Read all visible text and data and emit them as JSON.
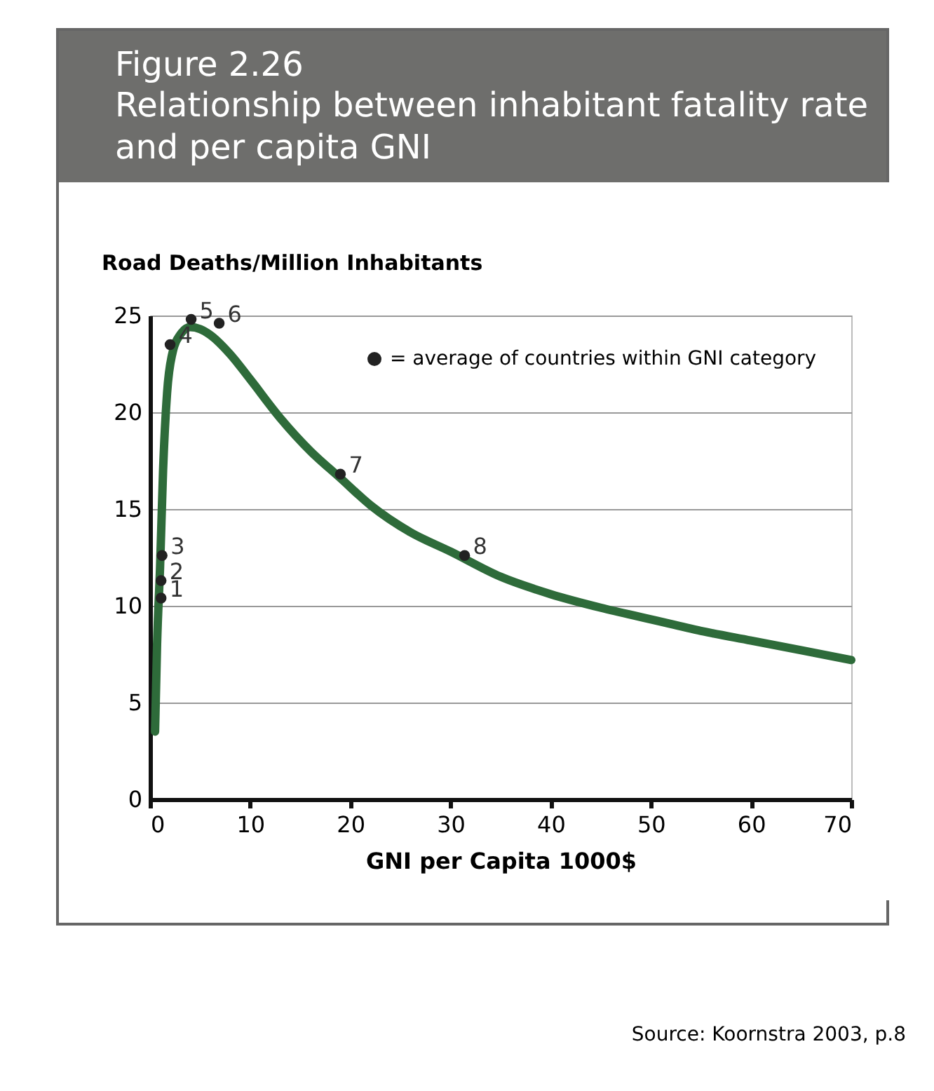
{
  "chart_data": {
    "type": "line",
    "title": "Figure 2.26",
    "subtitle": "Relationship between inhabitant fatality rate and per capita GNI",
    "xlabel": "GNI per Capita 1000$",
    "ylabel": "Road Deaths/Million Inhabitants",
    "xlim": [
      0,
      70
    ],
    "xticks": [
      0,
      10,
      20,
      30,
      40,
      50,
      60,
      70
    ],
    "ylim": [
      0,
      25
    ],
    "yticks": [
      0,
      5,
      10,
      15,
      20,
      25
    ],
    "grid": "y",
    "legend": "top right",
    "series": [
      {
        "color": "#2e6b3a",
        "marker": "none",
        "line_style": "solid",
        "x": [
          0.5,
          0.7,
          1,
          1.3,
          1.7,
          2.3,
          3,
          4,
          5,
          6,
          8,
          10,
          13,
          16,
          19,
          22,
          26,
          30,
          35,
          40,
          45,
          50,
          55,
          60,
          65,
          70
        ],
        "values": [
          3.5,
          8,
          12,
          17,
          21,
          23.2,
          24,
          24.4,
          24.3,
          24,
          23,
          21.7,
          19.7,
          18,
          16.6,
          15.2,
          13.8,
          12.8,
          11.5,
          10.6,
          9.9,
          9.3,
          8.7,
          8.2,
          7.7,
          7.2
        ]
      },
      {
        "type": "scatter",
        "name": "= average of countries within GNI category",
        "color": "#222222",
        "marker": "circle",
        "x": [
          1.1,
          1.1,
          1.2,
          2.0,
          4.1,
          6.9,
          19.0,
          31.4
        ],
        "values": [
          10.4,
          11.3,
          12.6,
          23.5,
          24.8,
          24.6,
          16.8,
          12.6
        ]
      }
    ],
    "annotations": [
      {
        "text": "1",
        "x": 1.1,
        "y": 10.4
      },
      {
        "text": "2",
        "x": 1.1,
        "y": 11.3
      },
      {
        "text": "3",
        "x": 1.2,
        "y": 12.6
      },
      {
        "text": "4",
        "x": 2.0,
        "y": 23.5
      },
      {
        "text": "5",
        "x": 4.1,
        "y": 24.8
      },
      {
        "text": "6",
        "x": 6.9,
        "y": 24.6
      },
      {
        "text": "7",
        "x": 19.0,
        "y": 16.8
      },
      {
        "text": "8",
        "x": 31.4,
        "y": 12.6
      },
      "Source: Koornstra 2003, p.8"
    ]
  }
}
